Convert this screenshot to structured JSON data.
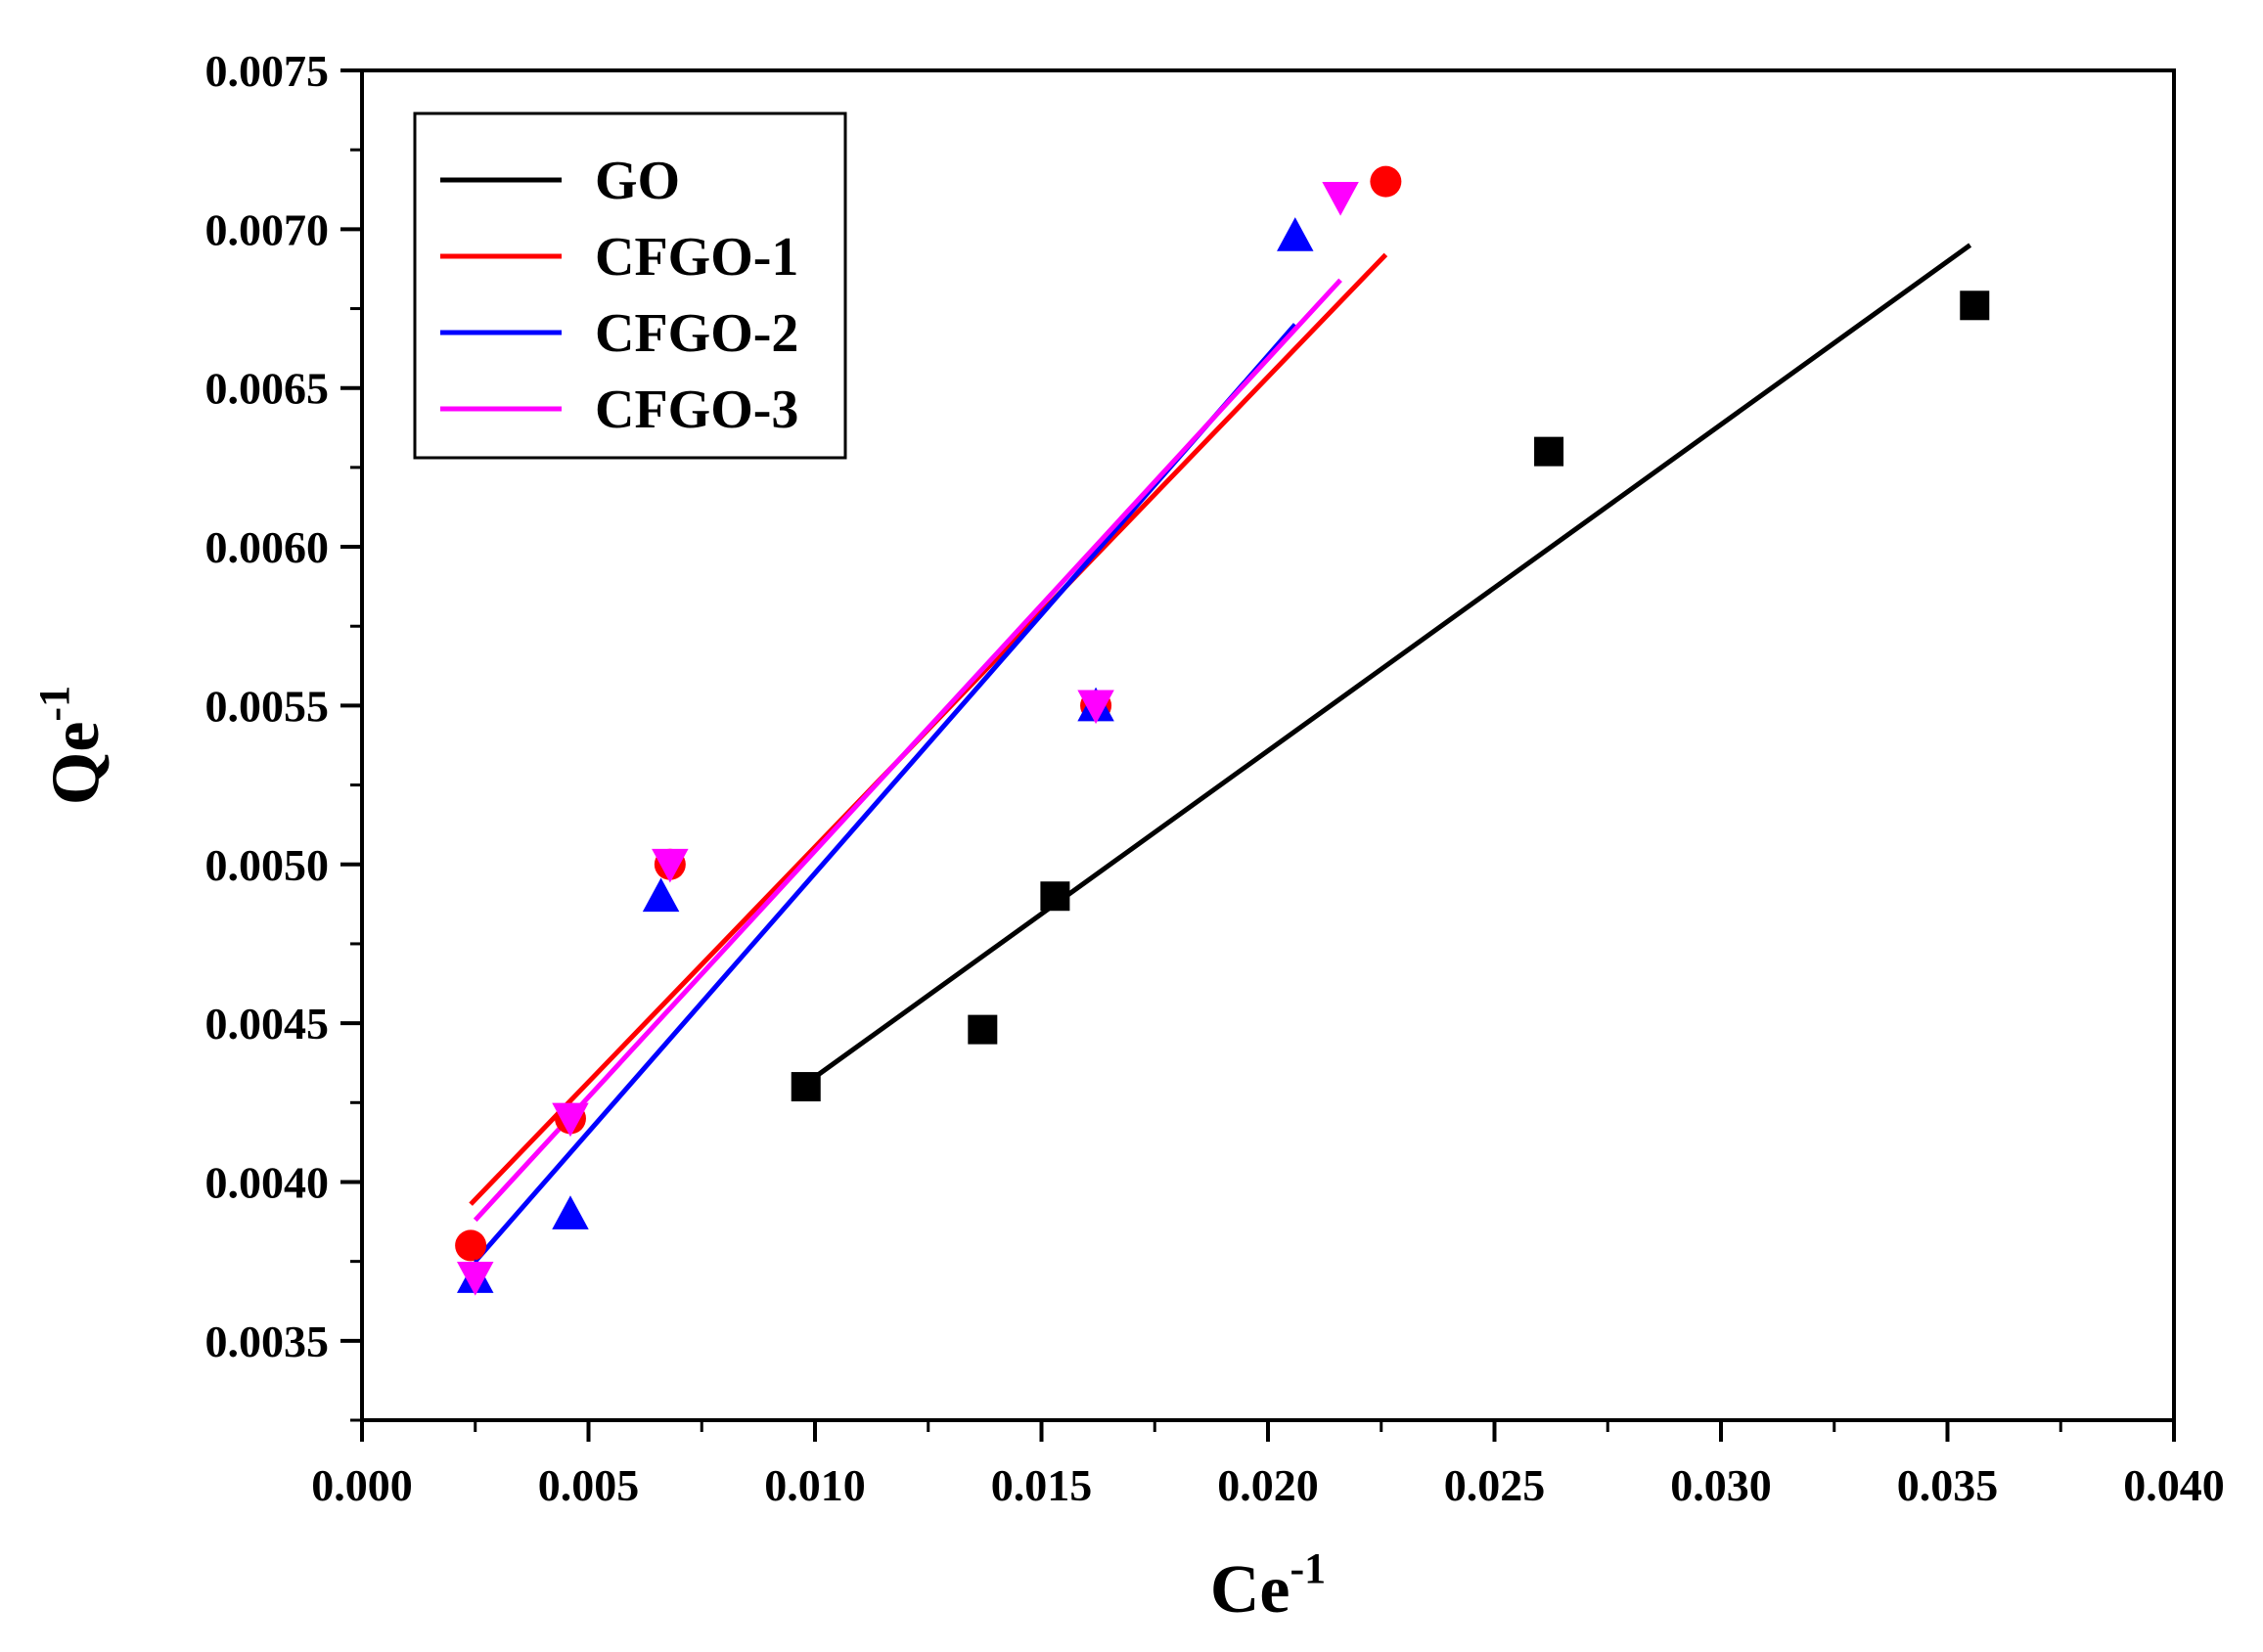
{
  "chart_data": {
    "type": "scatter",
    "title": "",
    "xlabel": {
      "base": "Ce",
      "sup": "-1"
    },
    "ylabel": {
      "base": "Qe",
      "sup": "-1"
    },
    "xlim": [
      0.0,
      0.04
    ],
    "ylim": [
      0.00325,
      0.0075
    ],
    "x_ticks": [
      "0.000",
      "0.005",
      "0.010",
      "0.015",
      "0.020",
      "0.025",
      "0.030",
      "0.035",
      "0.040"
    ],
    "y_ticks": [
      "0.0035",
      "0.0040",
      "0.0045",
      "0.0050",
      "0.0055",
      "0.0060",
      "0.0065",
      "0.0070",
      "0.0075"
    ],
    "legend_position": "top-left",
    "grid": false,
    "series": [
      {
        "name": "GO",
        "color": "#000000",
        "marker": "square",
        "x": [
          0.0098,
          0.0137,
          0.0153,
          0.0262,
          0.0356
        ],
        "y": [
          0.0043,
          0.00448,
          0.0049,
          0.0063,
          0.00676
        ],
        "fit": {
          "x": [
            0.0098,
            0.0355
          ],
          "y": [
            0.00431,
            0.00695
          ]
        }
      },
      {
        "name": "CFGO-1",
        "color": "#ff0000",
        "marker": "circle",
        "x": [
          0.0024,
          0.0046,
          0.0068,
          0.0162,
          0.0226
        ],
        "y": [
          0.0038,
          0.0042,
          0.005,
          0.0055,
          0.00715
        ],
        "fit": {
          "x": [
            0.0024,
            0.0226
          ],
          "y": [
            0.00393,
            0.00692
          ]
        }
      },
      {
        "name": "CFGO-2",
        "color": "#0000ff",
        "marker": "triangle-up",
        "x": [
          0.0025,
          0.0046,
          0.0066,
          0.0162,
          0.0206
        ],
        "y": [
          0.0037,
          0.0039,
          0.0049,
          0.0055,
          0.00698
        ],
        "fit": {
          "x": [
            0.0025,
            0.0206
          ],
          "y": [
            0.00375,
            0.0067
          ]
        }
      },
      {
        "name": "CFGO-3",
        "color": "#ff00ff",
        "marker": "triangle-down",
        "x": [
          0.0025,
          0.0046,
          0.0068,
          0.0162,
          0.0216
        ],
        "y": [
          0.0037,
          0.0042,
          0.005,
          0.0055,
          0.0071
        ],
        "fit": {
          "x": [
            0.0025,
            0.0216
          ],
          "y": [
            0.00388,
            0.00684
          ]
        }
      }
    ]
  }
}
